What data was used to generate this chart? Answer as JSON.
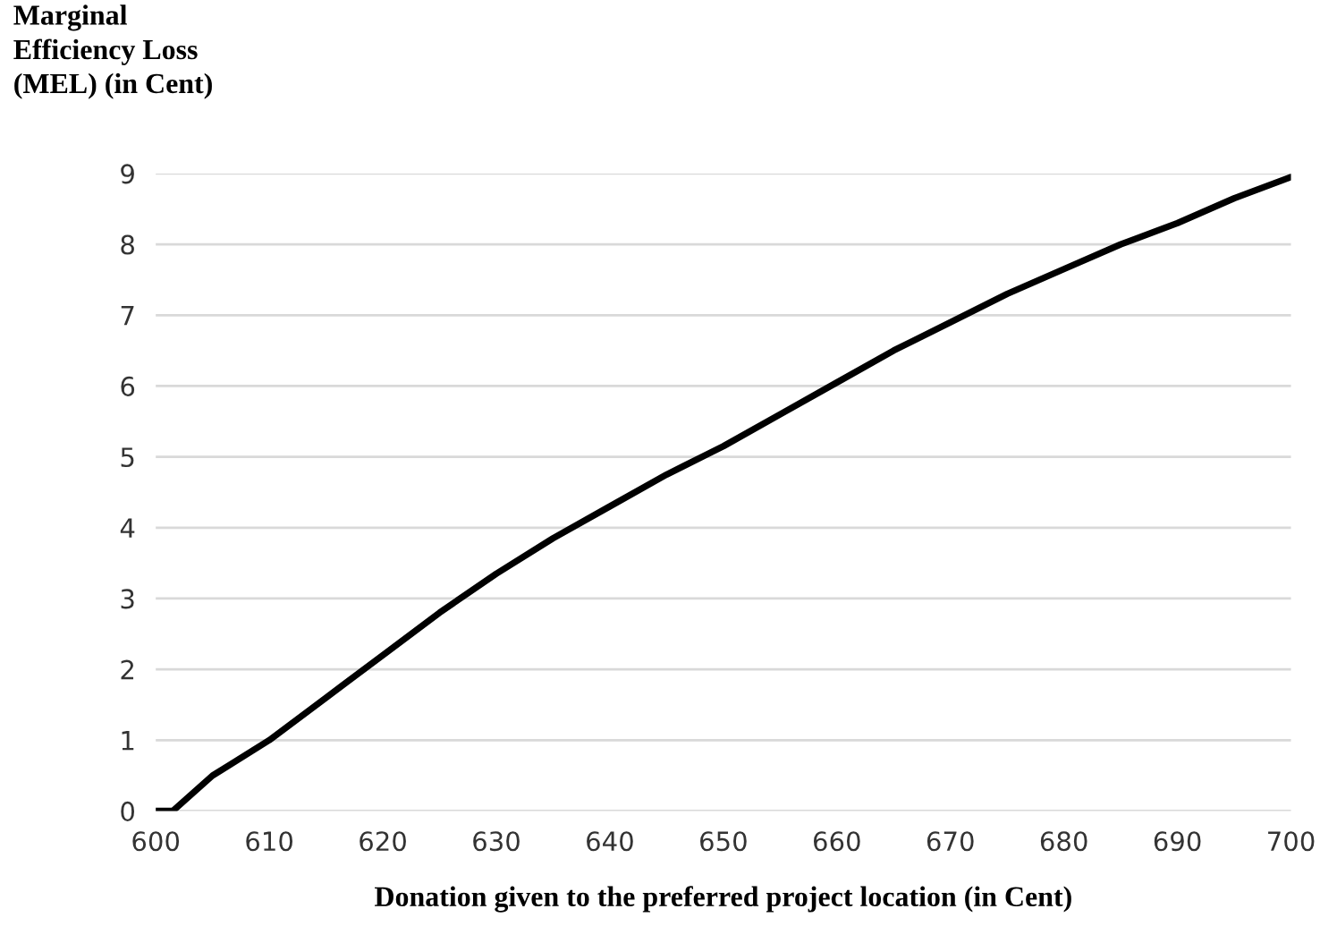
{
  "chart_data": {
    "type": "line",
    "ylabel": "Marginal\nEfficiency Loss\n(MEL) (in Cent)",
    "xlabel": "Donation given to the preferred project location (in Cent)",
    "series": [
      {
        "color": "#000000",
        "x": [
          600,
          601.5,
          605,
          610,
          615,
          620,
          625,
          630,
          635,
          640,
          645,
          650,
          655,
          660,
          665,
          670,
          675,
          680,
          685,
          690,
          695,
          700
        ],
        "values": [
          0,
          0,
          0.5,
          1.0,
          1.6,
          2.2,
          2.8,
          3.35,
          3.85,
          4.3,
          4.75,
          5.15,
          5.6,
          6.05,
          6.5,
          6.9,
          7.3,
          7.65,
          8.0,
          8.3,
          8.65,
          8.95
        ]
      }
    ],
    "xlim": [
      600,
      700
    ],
    "xticks": [
      600,
      610,
      620,
      630,
      640,
      650,
      660,
      670,
      680,
      690,
      700
    ],
    "ylim": [
      0,
      9
    ],
    "yticks": [
      0,
      1,
      2,
      3,
      4,
      5,
      6,
      7,
      8,
      9
    ],
    "grid": "y",
    "marker": "none",
    "line_style": "solid"
  }
}
